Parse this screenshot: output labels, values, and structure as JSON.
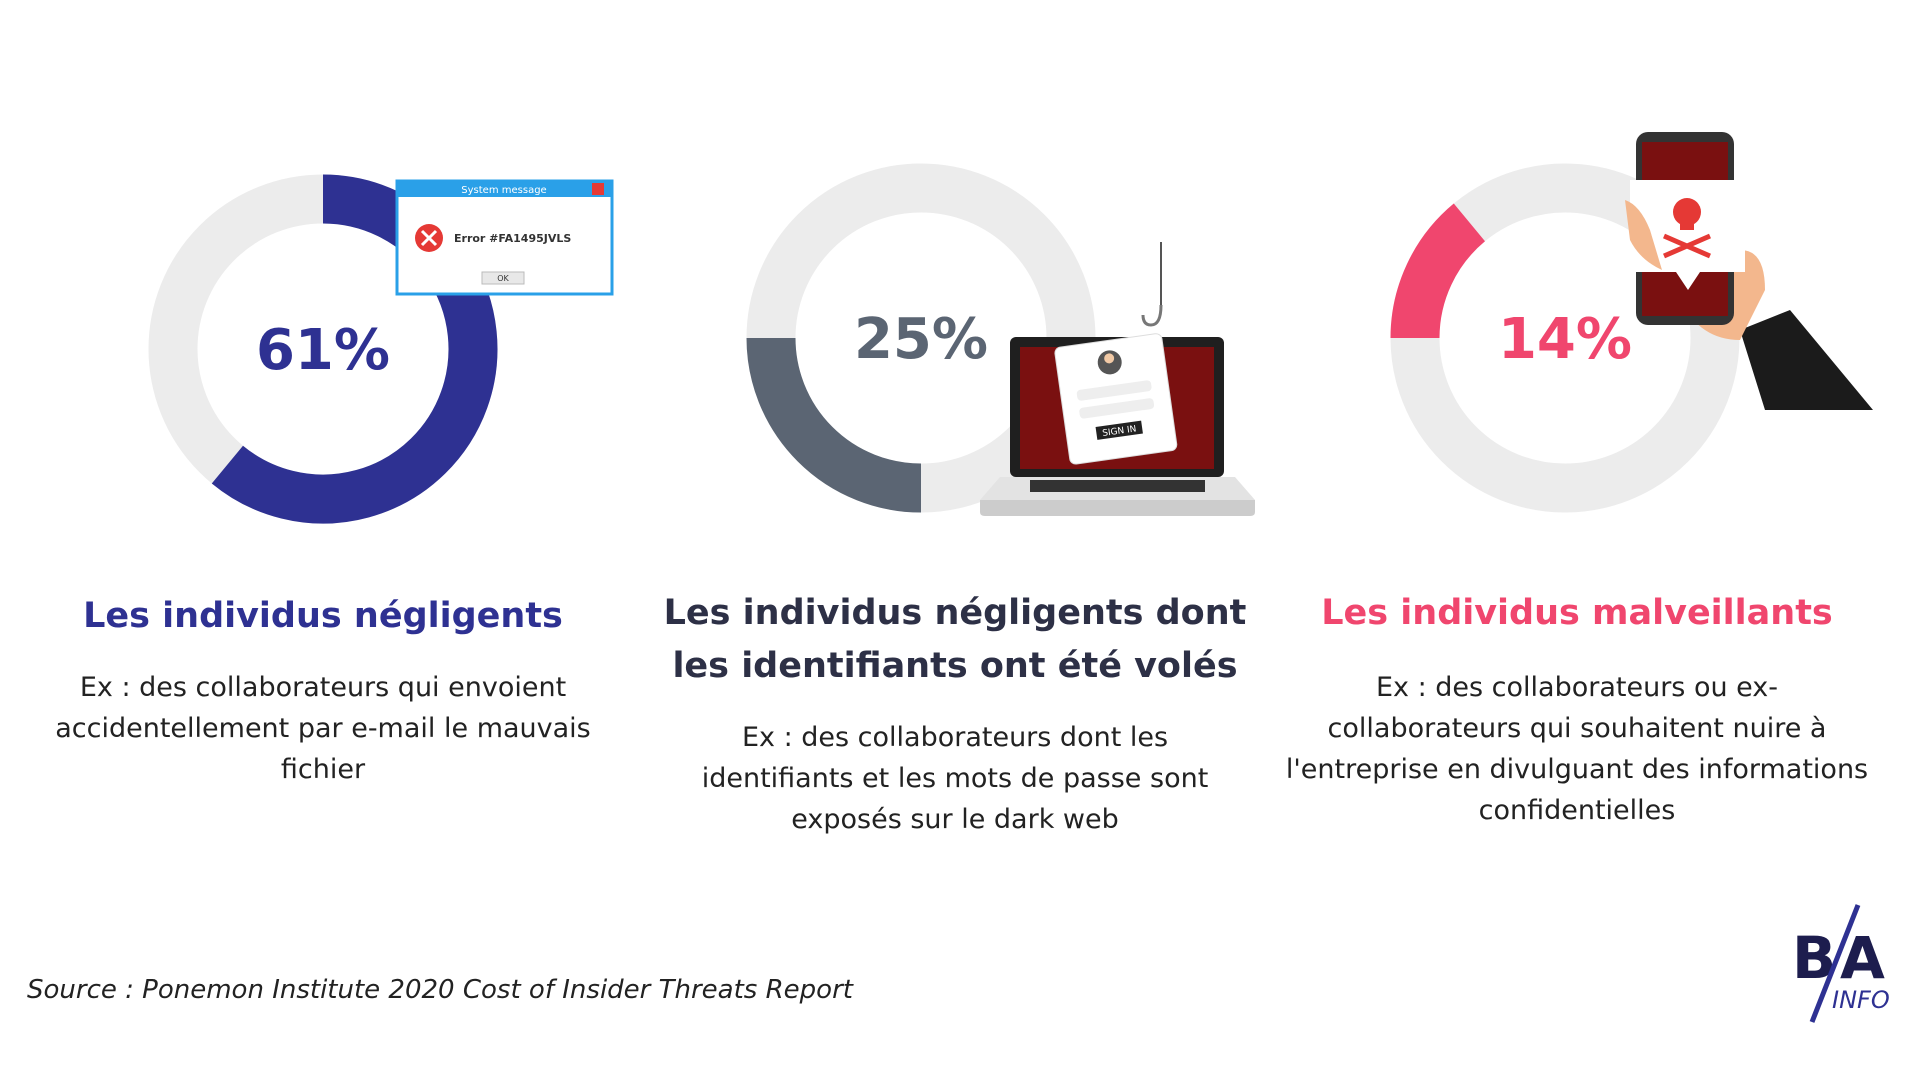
{
  "chart_data": [
    {
      "type": "donut",
      "title": "Les individus négligents",
      "subtitle": "Ex : des collaborateurs qui envoient accidentellement par e-mail le mauvais fichier",
      "values": [
        61
      ],
      "value_labels": [
        "61%"
      ],
      "color": "#2e3192"
    },
    {
      "type": "donut",
      "title": "Les individus négligents dont les identifiants ont été volés",
      "subtitle": "Ex : des collaborateurs dont les identifiants et les mots de passe sont exposés sur le dark web",
      "values": [
        25
      ],
      "value_labels": [
        "25%"
      ],
      "color": "#5b6573"
    },
    {
      "type": "donut",
      "title": "Les individus malveillants",
      "subtitle": "Ex : des collaborateurs ou ex-collaborateurs qui souhaitent nuire à l'entreprise en divulguant des informations confidentielles",
      "values": [
        14
      ],
      "value_labels": [
        "14%"
      ],
      "color": "#f0466e"
    }
  ],
  "illustrations": {
    "dialog_title": "System message",
    "error": "Error  #FA1495JVLS",
    "ok": "OK",
    "sign_in": "SIGN IN"
  },
  "source": "Source : Ponemon Institute 2020 Cost of Insider Threats Report",
  "logo": {
    "letters": [
      "B",
      "A"
    ],
    "sub": "INFO"
  }
}
